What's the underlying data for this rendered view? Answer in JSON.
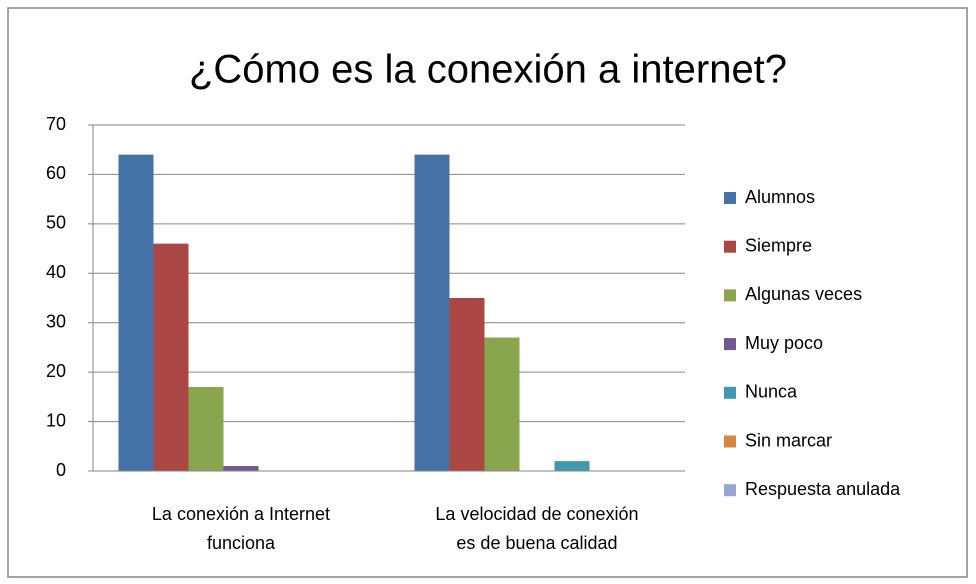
{
  "chart_data": {
    "type": "bar",
    "title": "¿Cómo es la conexión a internet?",
    "categories": [
      "La conexión a Internet funciona",
      "La velocidad de conexión es de buena calidad"
    ],
    "series": [
      {
        "name": "Alumnos",
        "color": "#4572A7",
        "values": [
          64,
          64
        ]
      },
      {
        "name": "Siempre",
        "color": "#AA4643",
        "values": [
          46,
          35
        ]
      },
      {
        "name": "Algunas veces",
        "color": "#89A54E",
        "values": [
          17,
          27
        ]
      },
      {
        "name": "Muy poco",
        "color": "#71588F",
        "values": [
          1,
          0
        ]
      },
      {
        "name": "Nunca",
        "color": "#4198AF",
        "values": [
          0,
          2
        ]
      },
      {
        "name": "Sin marcar",
        "color": "#DB843D",
        "values": [
          0,
          0
        ]
      },
      {
        "name": "Respuesta anulada",
        "color": "#93A9CF",
        "values": [
          0,
          0
        ]
      }
    ],
    "ylim": [
      0,
      70
    ],
    "yticks": [
      0,
      10,
      20,
      30,
      40,
      50,
      60,
      70
    ],
    "grid": true,
    "legend": "right"
  }
}
